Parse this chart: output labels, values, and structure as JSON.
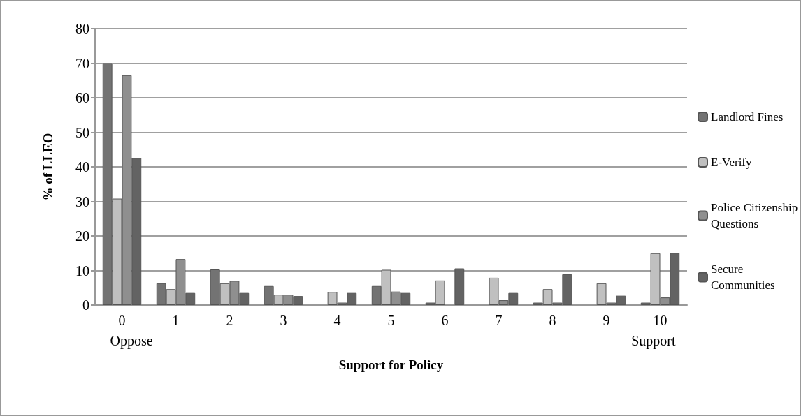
{
  "chart_data": {
    "type": "bar",
    "xlabel": "Support for Policy",
    "ylabel": "% of LLEO",
    "categories": [
      "0",
      "1",
      "2",
      "3",
      "4",
      "5",
      "6",
      "7",
      "8",
      "9",
      "10"
    ],
    "series": [
      {
        "name": "Landlord Fines",
        "color": "#737373",
        "values": [
          70,
          6.3,
          10.3,
          5.5,
          0,
          5.5,
          0.7,
          0,
          0.7,
          0,
          0.7
        ]
      },
      {
        "name": "E-Verify",
        "color": "#c0c0c0",
        "values": [
          30.8,
          4.6,
          6.3,
          3,
          3.8,
          10.2,
          7.1,
          7.9,
          4.6,
          6.3,
          15
        ]
      },
      {
        "name": "Police Citizenship Questions",
        "color": "#8f8f8f",
        "values": [
          66.5,
          13.3,
          7,
          3,
          0.7,
          3.9,
          0,
          1.4,
          0.7,
          0.7,
          2.2
        ]
      },
      {
        "name": "Secure Communities",
        "color": "#636363",
        "values": [
          42.6,
          3.5,
          3.5,
          2.6,
          3.5,
          3.5,
          10.6,
          3.5,
          8.9,
          2.7,
          15.1
        ]
      }
    ],
    "ylim": [
      0,
      80
    ],
    "yticks": [
      0,
      10,
      20,
      30,
      40,
      50,
      60,
      70,
      80
    ],
    "grid": "y",
    "legend": "right",
    "annotations": [
      "Oppose",
      "Support"
    ]
  }
}
